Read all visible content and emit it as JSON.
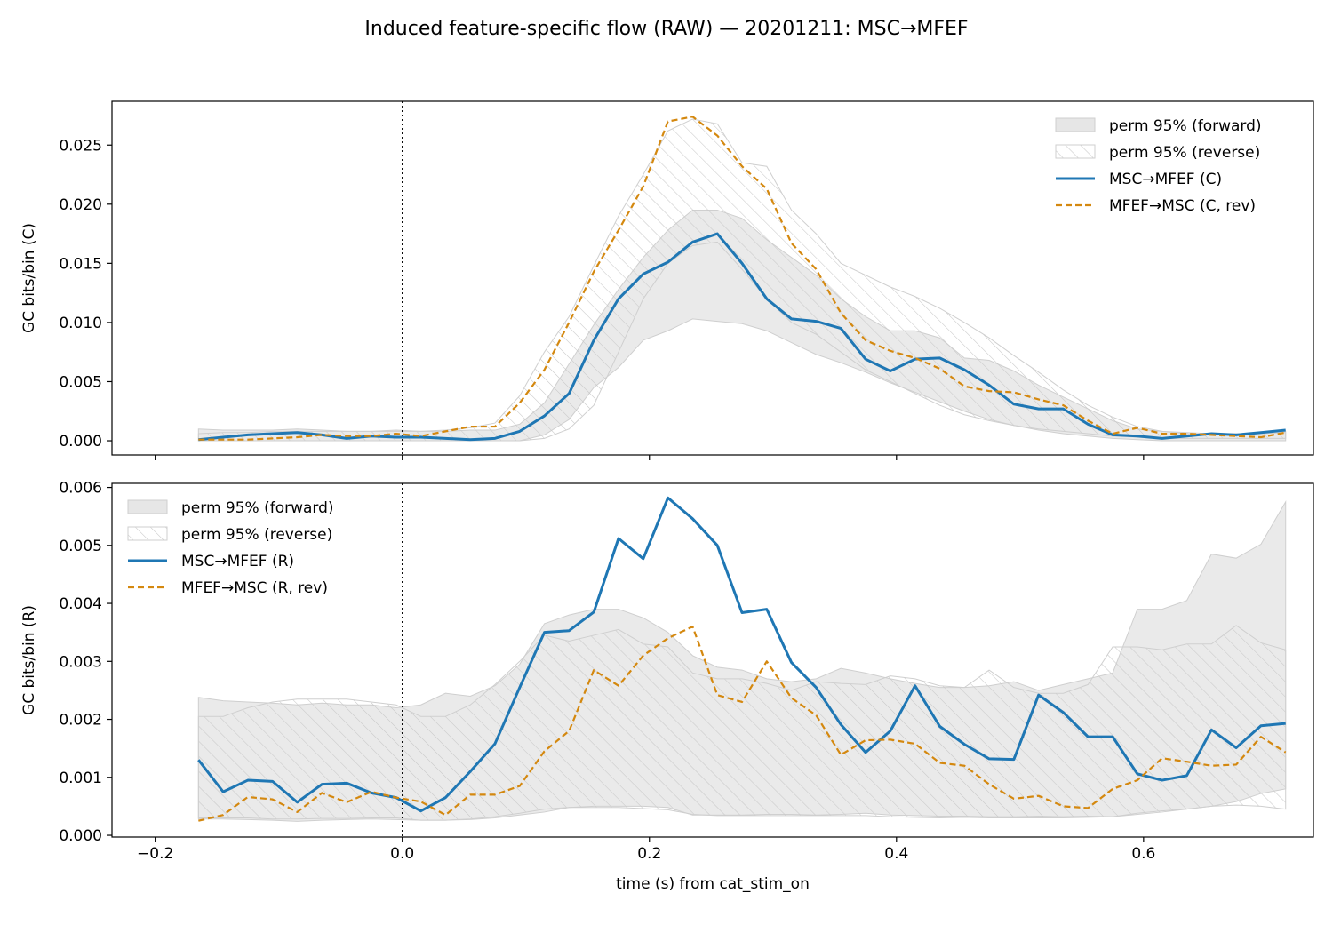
{
  "figure": {
    "title": "Induced feature-specific flow (RAW) — 20201211: MSC→MFEF"
  },
  "colors": {
    "forward_line": "#1f77b4",
    "reverse_line": "#d4880f",
    "perm_fill": "#e6e6e6",
    "perm_edge": "#cfcfcf",
    "hatch": "#c8c8c8"
  },
  "chart_data": [
    {
      "type": "line",
      "panel": "top",
      "ylabel": "GC bits/bin (C)",
      "xlabel": "",
      "xlim": [
        -0.235,
        0.7375
      ],
      "ylim": [
        -0.0012,
        0.0287
      ],
      "x_ticks": [
        -0.2,
        0.0,
        0.2,
        0.4,
        0.6
      ],
      "x_tick_labels": [
        "",
        "",
        "",
        "",
        ""
      ],
      "y_ticks": [
        0.0,
        0.005,
        0.01,
        0.015,
        0.02,
        0.025
      ],
      "y_tick_labels": [
        "0.000",
        "0.005",
        "0.010",
        "0.015",
        "0.020",
        "0.025"
      ],
      "event_line_x": 0.0,
      "legend_position": "upper right",
      "x": [
        -0.165,
        -0.145,
        -0.125,
        -0.105,
        -0.085,
        -0.065,
        -0.045,
        -0.025,
        -0.005,
        0.015,
        0.035,
        0.055,
        0.075,
        0.095,
        0.115,
        0.135,
        0.155,
        0.175,
        0.195,
        0.215,
        0.235,
        0.255,
        0.275,
        0.295,
        0.315,
        0.335,
        0.355,
        0.375,
        0.395,
        0.415,
        0.435,
        0.455,
        0.475,
        0.495,
        0.515,
        0.535,
        0.555,
        0.575,
        0.595,
        0.615,
        0.635,
        0.655,
        0.675,
        0.695,
        0.715
      ],
      "bands": [
        {
          "name": "perm 95% (forward)",
          "style": "solid",
          "lower": [
            0.0,
            0.0,
            0.0,
            0.0,
            0.0,
            0.0,
            0.0,
            0.0,
            0.0,
            0.0,
            0.0,
            0.0,
            0.0,
            0.0,
            0.0005,
            0.0018,
            0.0045,
            0.0062,
            0.0085,
            0.0093,
            0.0103,
            0.0101,
            0.0099,
            0.0093,
            0.0083,
            0.0073,
            0.0066,
            0.0058,
            0.0049,
            0.0041,
            0.0033,
            0.0025,
            0.0018,
            0.0013,
            0.0009,
            0.0006,
            0.0004,
            0.0002,
            0.0001,
            0.0,
            0.0,
            0.0,
            0.0,
            0.0,
            0.0
          ],
          "upper": [
            0.001,
            0.0009,
            0.0009,
            0.0009,
            0.001,
            0.0009,
            0.0008,
            0.0008,
            0.0009,
            0.0008,
            0.0008,
            0.0009,
            0.0009,
            0.0014,
            0.0032,
            0.0065,
            0.0098,
            0.0128,
            0.0155,
            0.0178,
            0.0195,
            0.0195,
            0.0188,
            0.017,
            0.0155,
            0.014,
            0.012,
            0.0105,
            0.0093,
            0.0093,
            0.0087,
            0.007,
            0.0068,
            0.0059,
            0.0047,
            0.0037,
            0.0027,
            0.0017,
            0.001,
            0.0008,
            0.0006,
            0.0005,
            0.0005,
            0.0006,
            0.0008
          ]
        },
        {
          "name": "perm 95% (reverse)",
          "style": "hatch",
          "lower": [
            0.0,
            0.0,
            0.0,
            0.0,
            0.0,
            0.0,
            0.0,
            0.0,
            0.0,
            0.0,
            0.0,
            0.0,
            0.0,
            0.0,
            0.0002,
            0.001,
            0.003,
            0.0075,
            0.012,
            0.015,
            0.0165,
            0.0168,
            0.0145,
            0.012,
            0.01,
            0.009,
            0.0075,
            0.006,
            0.005,
            0.004,
            0.003,
            0.0022,
            0.0017,
            0.0013,
            0.001,
            0.0008,
            0.0006,
            0.0004,
            0.0003,
            0.0002,
            0.0002,
            0.0002,
            0.0002,
            0.0002,
            0.0002
          ],
          "upper": [
            0.0006,
            0.0007,
            0.0007,
            0.0008,
            0.0008,
            0.0008,
            0.0008,
            0.0008,
            0.0008,
            0.0008,
            0.0009,
            0.0011,
            0.0015,
            0.0038,
            0.0075,
            0.0105,
            0.0148,
            0.019,
            0.0225,
            0.0262,
            0.0272,
            0.0268,
            0.0235,
            0.0232,
            0.0195,
            0.0175,
            0.015,
            0.014,
            0.013,
            0.0122,
            0.0112,
            0.01,
            0.0087,
            0.0072,
            0.0058,
            0.0043,
            0.003,
            0.002,
            0.0012,
            0.0008,
            0.0007,
            0.0006,
            0.0006,
            0.0006,
            0.0007
          ]
        }
      ],
      "series": [
        {
          "name": "MSC→MFEF (C)",
          "style": "solid",
          "values": [
            0.0001,
            0.0003,
            0.0005,
            0.0006,
            0.0007,
            0.0005,
            0.0002,
            0.0004,
            0.0003,
            0.0003,
            0.0002,
            0.0001,
            0.0002,
            0.0008,
            0.0021,
            0.004,
            0.0085,
            0.012,
            0.0141,
            0.0151,
            0.0168,
            0.0175,
            0.015,
            0.012,
            0.0103,
            0.0101,
            0.0095,
            0.0069,
            0.0059,
            0.0069,
            0.007,
            0.006,
            0.0047,
            0.0031,
            0.0027,
            0.0027,
            0.0014,
            0.0005,
            0.0004,
            0.0002,
            0.0004,
            0.0006,
            0.0005,
            0.0007,
            0.0009
          ]
        },
        {
          "name": "MFEF→MSC (C, rev)",
          "style": "dashed",
          "values": [
            0.0001,
            0.0001,
            0.0001,
            0.0002,
            0.0003,
            0.0005,
            0.0004,
            0.0004,
            0.0006,
            0.0004,
            0.0008,
            0.0012,
            0.0012,
            0.0032,
            0.006,
            0.01,
            0.0143,
            0.0178,
            0.0215,
            0.027,
            0.0274,
            0.0258,
            0.0232,
            0.0213,
            0.0167,
            0.0145,
            0.0108,
            0.0085,
            0.0076,
            0.007,
            0.0061,
            0.0046,
            0.0042,
            0.0041,
            0.0035,
            0.003,
            0.0017,
            0.0006,
            0.0011,
            0.0006,
            0.0006,
            0.0005,
            0.0004,
            0.0003,
            0.0007
          ]
        }
      ]
    },
    {
      "type": "line",
      "panel": "bottom",
      "ylabel": "GC bits/bin (R)",
      "xlabel": "time (s) from cat_stim_on",
      "xlim": [
        -0.235,
        0.7375
      ],
      "ylim": [
        -3e-05,
        0.00607
      ],
      "x_ticks": [
        -0.2,
        0.0,
        0.2,
        0.4,
        0.6
      ],
      "x_tick_labels": [
        "−0.2",
        "0.0",
        "0.2",
        "0.4",
        "0.6"
      ],
      "y_ticks": [
        0.0,
        0.001,
        0.002,
        0.003,
        0.004,
        0.005,
        0.006
      ],
      "y_tick_labels": [
        "0.000",
        "0.001",
        "0.002",
        "0.003",
        "0.004",
        "0.005",
        "0.006"
      ],
      "event_line_x": 0.0,
      "legend_position": "upper left",
      "x": [
        -0.165,
        -0.145,
        -0.125,
        -0.105,
        -0.085,
        -0.065,
        -0.045,
        -0.025,
        -0.005,
        0.015,
        0.035,
        0.055,
        0.075,
        0.095,
        0.115,
        0.135,
        0.155,
        0.175,
        0.195,
        0.215,
        0.235,
        0.255,
        0.275,
        0.295,
        0.315,
        0.335,
        0.355,
        0.375,
        0.395,
        0.415,
        0.435,
        0.455,
        0.475,
        0.495,
        0.515,
        0.535,
        0.555,
        0.575,
        0.595,
        0.615,
        0.635,
        0.655,
        0.675,
        0.695,
        0.715
      ],
      "bands": [
        {
          "name": "perm 95% (forward)",
          "style": "solid",
          "lower": [
            0.00028,
            0.00028,
            0.00027,
            0.00026,
            0.00024,
            0.00026,
            0.00027,
            0.00028,
            0.00027,
            0.00026,
            0.00026,
            0.00027,
            0.0003,
            0.00035,
            0.0004,
            0.00048,
            0.0005,
            0.0005,
            0.0005,
            0.00048,
            0.00035,
            0.00035,
            0.00035,
            0.00036,
            0.00036,
            0.00035,
            0.00036,
            0.00038,
            0.00035,
            0.00034,
            0.00033,
            0.00033,
            0.00032,
            0.00032,
            0.00033,
            0.00032,
            0.00033,
            0.00032,
            0.00038,
            0.00042,
            0.00045,
            0.0005,
            0.00058,
            0.00072,
            0.0008
          ],
          "upper": [
            0.00238,
            0.00232,
            0.0023,
            0.00228,
            0.00225,
            0.00228,
            0.00225,
            0.00225,
            0.0022,
            0.00225,
            0.00245,
            0.0024,
            0.00258,
            0.00295,
            0.00365,
            0.0038,
            0.0039,
            0.0039,
            0.00375,
            0.0035,
            0.0031,
            0.0029,
            0.00285,
            0.0027,
            0.00265,
            0.0027,
            0.00288,
            0.0028,
            0.0027,
            0.00262,
            0.00255,
            0.00255,
            0.00258,
            0.00265,
            0.0025,
            0.0026,
            0.0027,
            0.0028,
            0.0039,
            0.0039,
            0.00405,
            0.00485,
            0.00478,
            0.00502,
            0.00575
          ]
        },
        {
          "name": "perm 95% (reverse)",
          "style": "hatch",
          "lower": [
            0.0003,
            0.0003,
            0.0003,
            0.00028,
            0.00028,
            0.00029,
            0.00029,
            0.0003,
            0.0003,
            0.00026,
            0.00026,
            0.00028,
            0.00032,
            0.00038,
            0.00045,
            0.00048,
            0.00048,
            0.00048,
            0.00046,
            0.00044,
            0.00036,
            0.00034,
            0.00034,
            0.00034,
            0.00034,
            0.00034,
            0.00034,
            0.00034,
            0.00032,
            0.00031,
            0.0003,
            0.00031,
            0.0003,
            0.0003,
            0.0003,
            0.0003,
            0.00031,
            0.00032,
            0.00036,
            0.0004,
            0.00045,
            0.0005,
            0.00052,
            0.0005,
            0.00045
          ],
          "upper": [
            0.00205,
            0.00205,
            0.0022,
            0.0023,
            0.00235,
            0.00235,
            0.00235,
            0.0023,
            0.00225,
            0.00205,
            0.00205,
            0.00225,
            0.0026,
            0.003,
            0.00345,
            0.00335,
            0.00345,
            0.00355,
            0.0033,
            0.00325,
            0.0028,
            0.0027,
            0.0027,
            0.00262,
            0.0025,
            0.00265,
            0.00262,
            0.0026,
            0.00275,
            0.0027,
            0.00258,
            0.00255,
            0.00285,
            0.00255,
            0.00245,
            0.00245,
            0.0026,
            0.00325,
            0.00325,
            0.0032,
            0.0033,
            0.0033,
            0.00362,
            0.00332,
            0.0032
          ]
        }
      ],
      "series": [
        {
          "name": "MSC→MFEF (R)",
          "style": "solid",
          "values": [
            0.0013,
            0.00075,
            0.00095,
            0.00093,
            0.00057,
            0.00088,
            0.0009,
            0.00073,
            0.00065,
            0.00042,
            0.00065,
            0.0011,
            0.00158,
            0.00255,
            0.0035,
            0.00353,
            0.00385,
            0.00512,
            0.00477,
            0.00582,
            0.00546,
            0.005,
            0.00384,
            0.0039,
            0.00298,
            0.00255,
            0.00191,
            0.00143,
            0.0018,
            0.00258,
            0.00188,
            0.00157,
            0.00132,
            0.00131,
            0.00242,
            0.00212,
            0.0017,
            0.0017,
            0.00106,
            0.00095,
            0.00103,
            0.00182,
            0.00151,
            0.00189,
            0.00193
          ]
        },
        {
          "name": "MFEF→MSC (R, rev)",
          "style": "dashed",
          "values": [
            0.00025,
            0.00035,
            0.00066,
            0.00062,
            0.0004,
            0.00073,
            0.00057,
            0.00075,
            0.00065,
            0.00058,
            0.00035,
            0.0007,
            0.0007,
            0.00085,
            0.00145,
            0.0018,
            0.00285,
            0.00258,
            0.0031,
            0.0034,
            0.0036,
            0.00242,
            0.0023,
            0.003,
            0.00237,
            0.00207,
            0.00139,
            0.00164,
            0.00165,
            0.00158,
            0.00125,
            0.0012,
            0.00088,
            0.00063,
            0.00068,
            0.0005,
            0.00047,
            0.0008,
            0.00095,
            0.00133,
            0.00127,
            0.0012,
            0.00122,
            0.0017,
            0.00143
          ]
        }
      ]
    }
  ]
}
